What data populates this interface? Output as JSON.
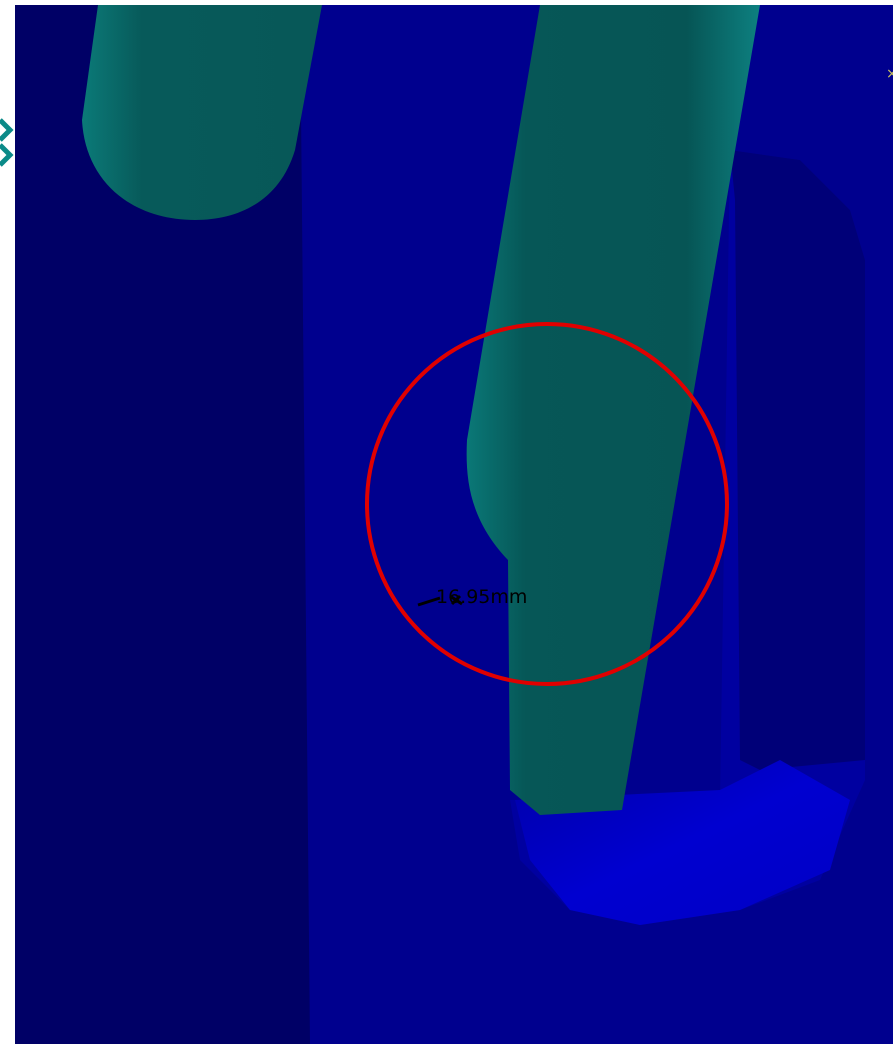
{
  "viewport": {
    "measurement_label": "16.95mm",
    "close_marker": "×"
  }
}
